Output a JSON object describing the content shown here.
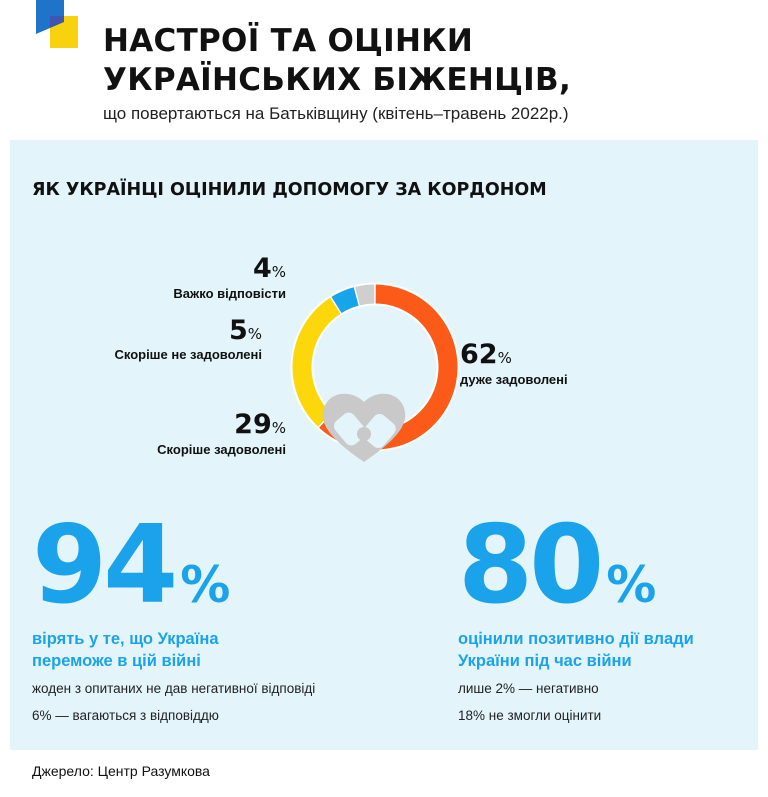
{
  "header": {
    "title_line1": "НАСТРОЇ ТА ОЦІНКИ",
    "title_line2": "УКРАЇНСЬКИХ БІЖЕНЦІВ,",
    "subtitle": "що повертаються на Батьківщину (квітень–травень 2022р.)",
    "logo_icon": "ukraine-flag-logo-icon"
  },
  "section_title": "ЯК УКРАЇНЦІ ОЦІНИЛИ ДОПОМОГУ ЗА КОРДОНОМ",
  "center_icon": "handshake-heart-icon",
  "chart_data": {
    "type": "pie",
    "variant": "donut",
    "percent_sign": "%",
    "categories": [
      "дуже задоволені",
      "Скоріше задоволені",
      "Скоріше не задоволені",
      "Важко відповісти"
    ],
    "values": [
      62,
      29,
      5,
      4
    ],
    "colors": [
      "#fb5a19",
      "#fcd70c",
      "#16a4ea",
      "#cfcfcf"
    ],
    "title": ""
  },
  "stats": [
    {
      "value": "94",
      "unit": "%",
      "headline": "вірять у те, що Україна переможе в цій війні",
      "notes": [
        "жоден з опитаних не дав негативної відповіді",
        "6% — вагаються з відповіддю"
      ]
    },
    {
      "value": "80",
      "unit": "%",
      "headline": "оцінили позитивно дії влади України під час війни",
      "notes": [
        "лише 2% — негативно",
        "18% не змогли оцінити"
      ]
    }
  ],
  "source": "Джерело: Центр Разумкова",
  "colors": {
    "accent_blue": "#1aa3ea",
    "panel_bg": "#e3f5fb"
  }
}
